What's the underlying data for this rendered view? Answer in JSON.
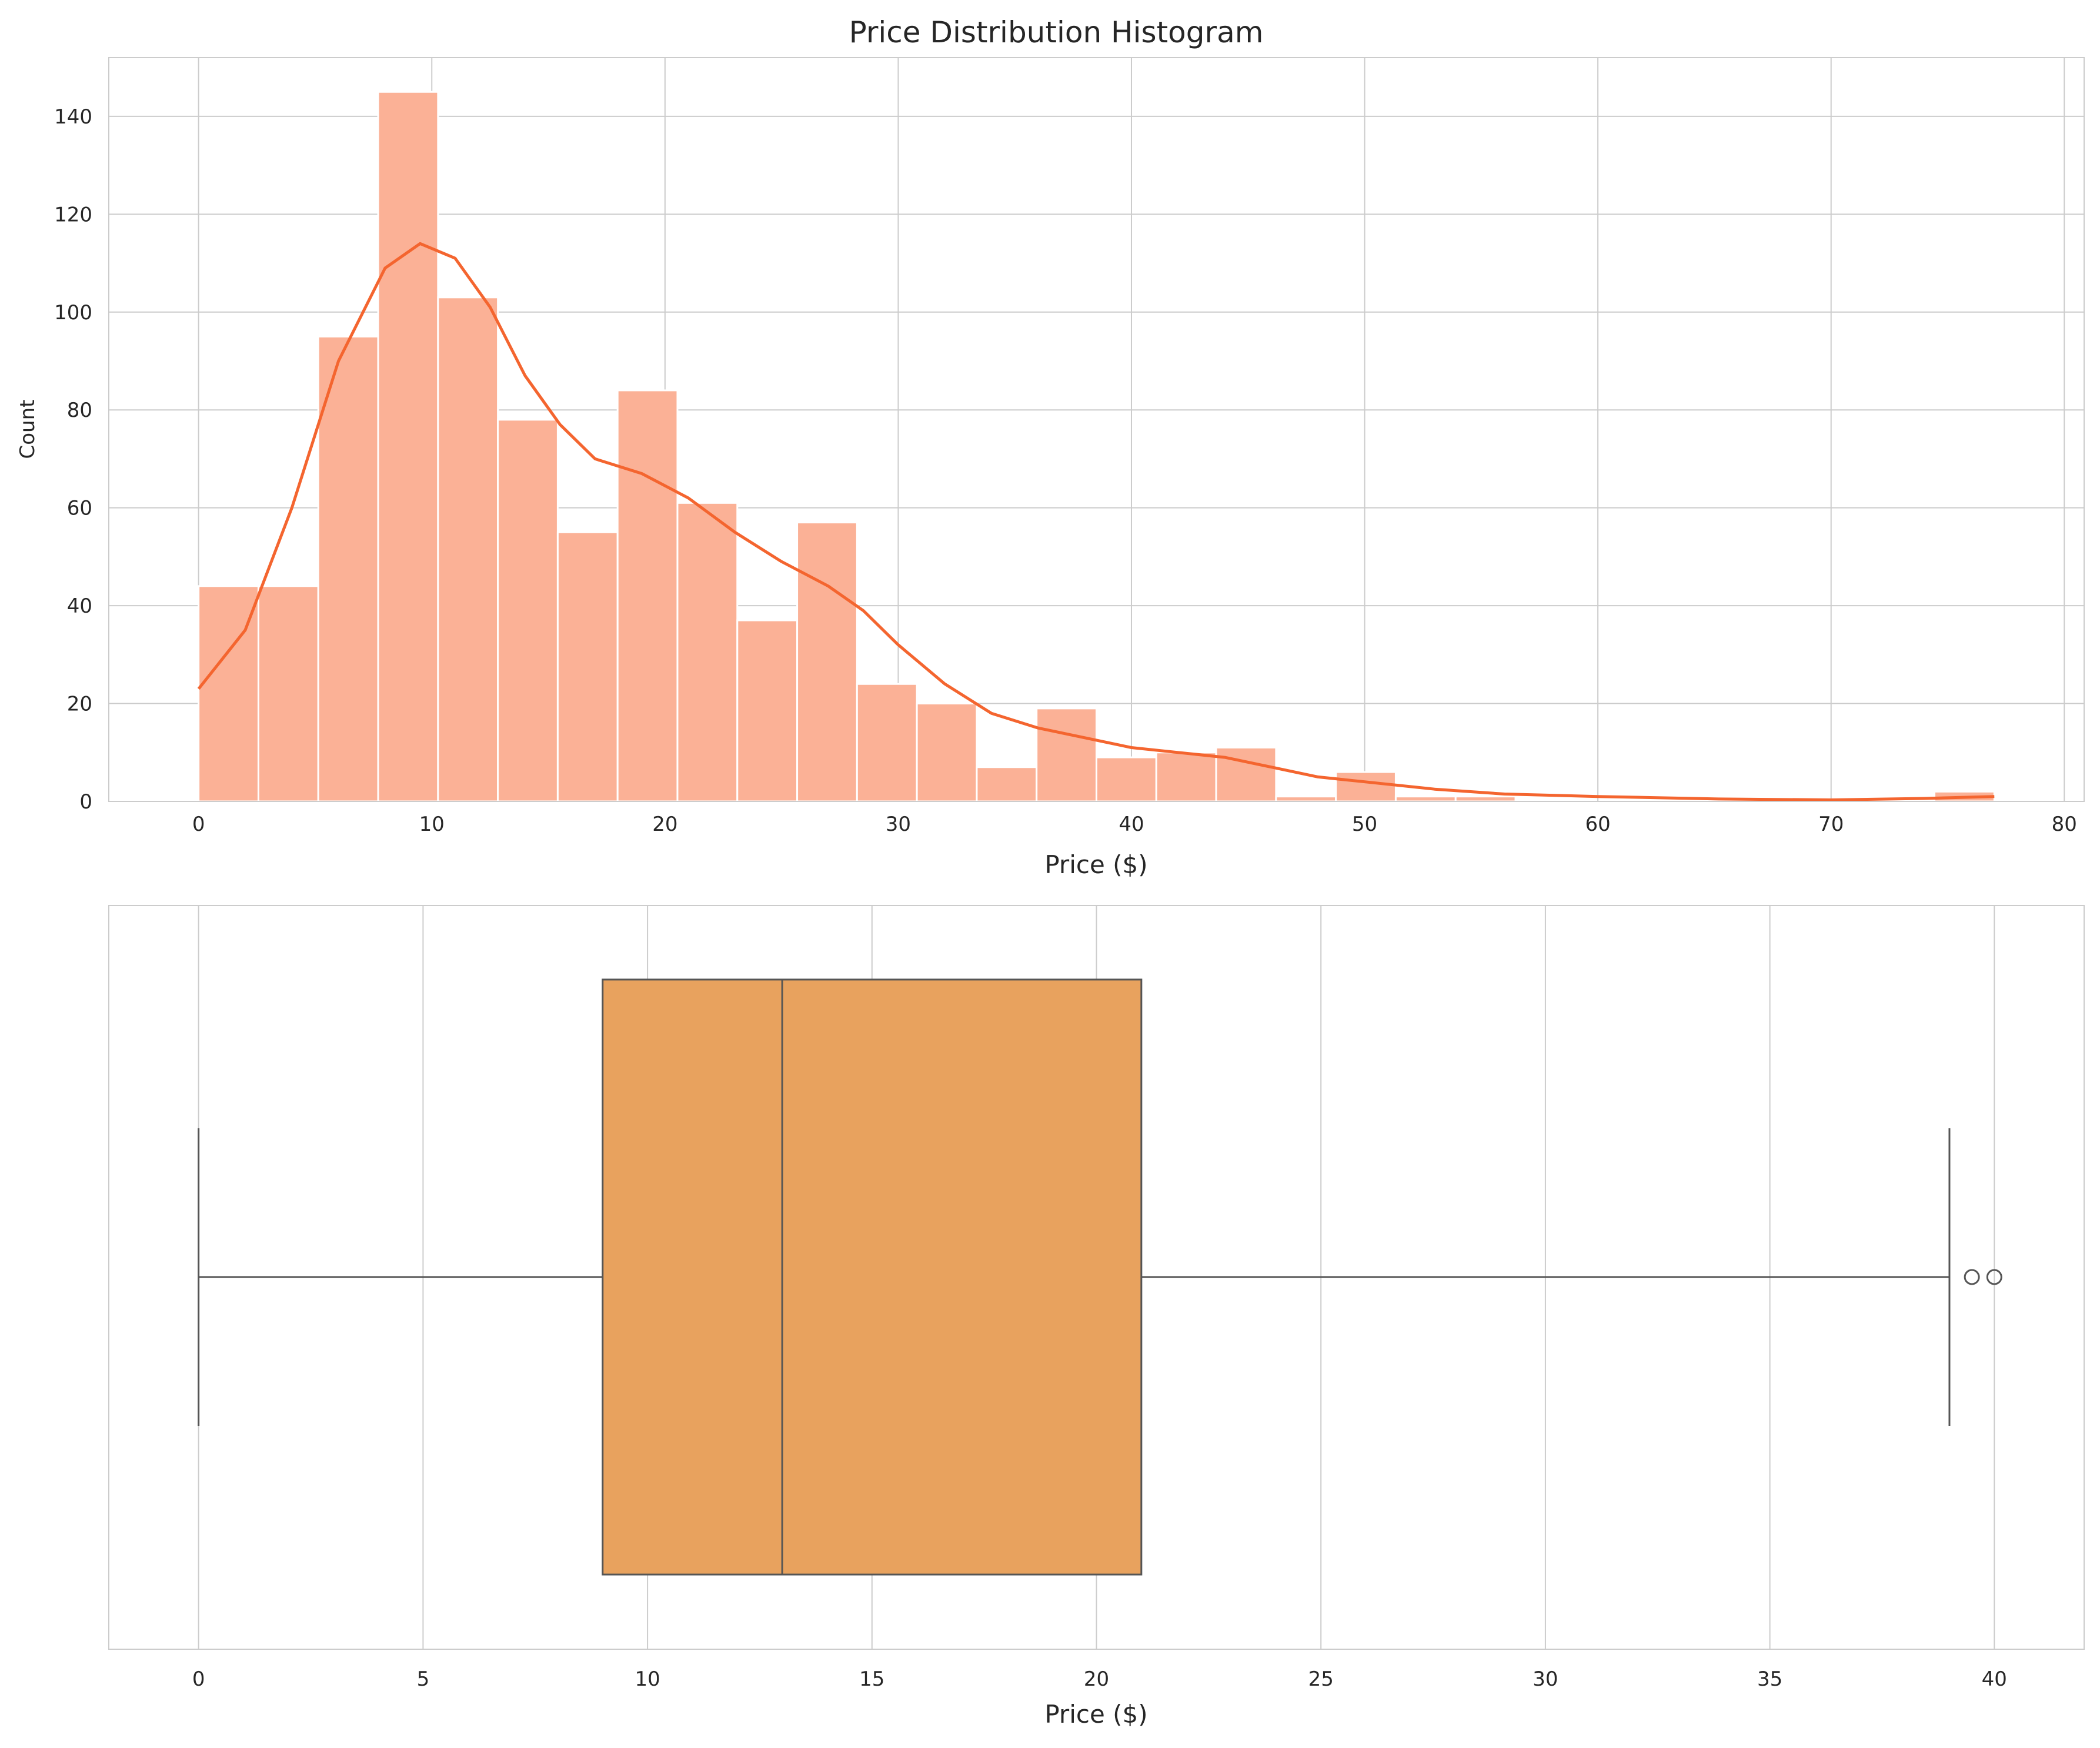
{
  "colors": {
    "hist_fill": "#fbb196",
    "kde_line": "#f4652f",
    "box_fill": "#e8a25e",
    "box_edge": "#555555",
    "grid": "#cccccc",
    "spine": "#cccccc",
    "background": "#ffffff"
  },
  "chart_data": [
    {
      "type": "histogram",
      "title": "Price Distribution Histogram",
      "xlabel": "Price ($)",
      "ylabel": "Count",
      "xlim": [
        -3.85,
        80.85
      ],
      "ylim": [
        0,
        152
      ],
      "x_ticks": [
        0,
        10,
        20,
        30,
        40,
        50,
        60,
        70,
        80
      ],
      "y_ticks": [
        0,
        20,
        40,
        60,
        80,
        100,
        120,
        140
      ],
      "grid": true,
      "bin_edges": [
        0,
        2.567,
        5.133,
        7.7,
        10.267,
        12.833,
        15.4,
        17.967,
        20.533,
        23.1,
        25.667,
        28.233,
        30.8,
        33.367,
        35.933,
        38.5,
        41.067,
        43.633,
        46.2,
        48.767,
        51.333,
        53.9,
        56.467,
        59.033,
        61.6,
        64.167,
        66.733,
        69.3,
        71.867,
        74.433,
        77
      ],
      "counts": [
        44,
        44,
        95,
        145,
        103,
        78,
        55,
        84,
        61,
        37,
        57,
        24,
        20,
        7,
        19,
        9,
        10,
        11,
        1,
        6,
        1,
        1,
        0,
        0,
        0,
        0,
        0,
        0,
        0,
        2
      ],
      "kde": {
        "x": [
          0,
          2,
          4,
          6,
          8,
          9.5,
          11,
          12.5,
          14,
          15.5,
          17,
          19,
          21,
          23,
          25,
          27,
          28.5,
          30,
          32,
          34,
          36,
          38,
          40,
          42,
          44,
          46,
          48,
          50,
          53,
          56,
          60,
          65,
          70,
          74,
          77
        ],
        "y": [
          23,
          35,
          60,
          90,
          109,
          114,
          111,
          101,
          87,
          77,
          70,
          67,
          62,
          55,
          49,
          44,
          39,
          32,
          24,
          18,
          15,
          13,
          11,
          10,
          9,
          7,
          5,
          4,
          2.5,
          1.5,
          1,
          0.5,
          0.3,
          0.6,
          1
        ]
      }
    },
    {
      "type": "box",
      "xlabel": "Price ($)",
      "xlim": [
        -2,
        42
      ],
      "x_ticks": [
        0,
        5,
        10,
        15,
        20,
        25,
        30,
        35,
        40
      ],
      "grid": true,
      "whisker_low": 0,
      "q1": 9,
      "median": 13,
      "q3": 21,
      "whisker_high": 39,
      "outliers": [
        39.5,
        40
      ]
    }
  ]
}
